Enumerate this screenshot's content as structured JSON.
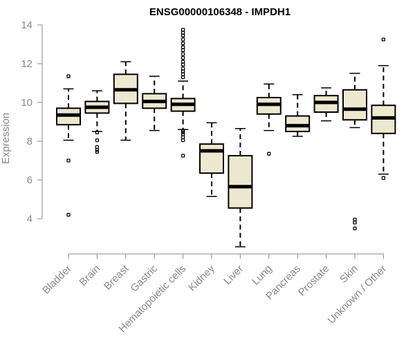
{
  "chart_data": {
    "type": "box",
    "title": "ENSG00000106348 - IMPDH1",
    "xlabel": "",
    "ylabel": "Expression",
    "ylim": [
      2.5,
      14
    ],
    "yticks": [
      4,
      6,
      8,
      10,
      12,
      14
    ],
    "grid": false,
    "categories": [
      "Bladder",
      "Brain",
      "Breast",
      "Gastric",
      "Hematopoietic cells",
      "Kidney",
      "Liver",
      "Lung",
      "Pancreas",
      "Prostate",
      "Skin",
      "Unknown / Other"
    ],
    "boxes": [
      {
        "category": "Bladder",
        "whisker_low": 8.05,
        "q1": 8.85,
        "median": 9.35,
        "q3": 9.7,
        "whisker_high": 10.7,
        "outliers": [
          11.35,
          7.0,
          4.2
        ]
      },
      {
        "category": "Brain",
        "whisker_low": 8.5,
        "q1": 9.45,
        "median": 9.75,
        "q3": 10.05,
        "whisker_high": 10.6,
        "outliers": [
          8.45,
          8.05,
          7.7,
          7.55,
          7.45
        ]
      },
      {
        "category": "Breast",
        "whisker_low": 8.05,
        "q1": 9.95,
        "median": 10.65,
        "q3": 11.45,
        "whisker_high": 12.1,
        "outliers": []
      },
      {
        "category": "Gastric",
        "whisker_low": 8.55,
        "q1": 9.7,
        "median": 10.05,
        "q3": 10.45,
        "whisker_high": 11.35,
        "outliers": []
      },
      {
        "category": "Hematopoietic cells",
        "whisker_low": 8.6,
        "q1": 9.55,
        "median": 9.9,
        "q3": 10.2,
        "whisker_high": 11.1,
        "outliers": [
          13.75,
          13.6,
          13.45,
          13.25,
          13.05,
          12.85,
          12.7,
          12.5,
          12.3,
          12.1,
          11.95,
          11.75,
          11.6,
          11.45,
          11.3,
          8.55,
          8.45,
          8.35,
          8.2,
          8.05,
          7.25
        ]
      },
      {
        "category": "Kidney",
        "whisker_low": 5.15,
        "q1": 6.35,
        "median": 7.5,
        "q3": 7.85,
        "whisker_high": 8.95,
        "outliers": []
      },
      {
        "category": "Liver",
        "whisker_low": 2.55,
        "q1": 4.55,
        "median": 5.65,
        "q3": 7.25,
        "whisker_high": 8.65,
        "outliers": []
      },
      {
        "category": "Lung",
        "whisker_low": 8.55,
        "q1": 9.4,
        "median": 9.9,
        "q3": 10.25,
        "whisker_high": 10.95,
        "outliers": [
          7.35
        ]
      },
      {
        "category": "Pancreas",
        "whisker_low": 8.25,
        "q1": 8.5,
        "median": 8.8,
        "q3": 9.3,
        "whisker_high": 10.4,
        "outliers": []
      },
      {
        "category": "Prostate",
        "whisker_low": 9.05,
        "q1": 9.5,
        "median": 10.0,
        "q3": 10.35,
        "whisker_high": 10.75,
        "outliers": []
      },
      {
        "category": "Skin",
        "whisker_low": 8.7,
        "q1": 9.1,
        "median": 9.65,
        "q3": 10.65,
        "whisker_high": 11.5,
        "outliers": [
          3.95,
          3.8,
          3.5
        ]
      },
      {
        "category": "Unknown / Other",
        "whisker_low": 6.3,
        "q1": 8.4,
        "median": 9.2,
        "q3": 9.85,
        "whisker_high": 11.9,
        "outliers": [
          13.25,
          6.1
        ]
      }
    ]
  }
}
